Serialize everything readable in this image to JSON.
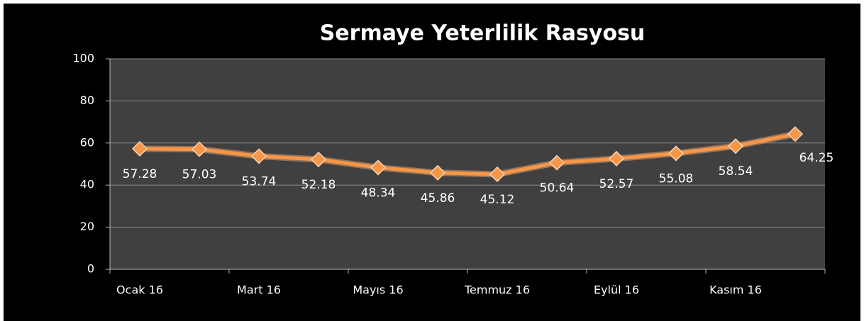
{
  "chart_data": {
    "type": "line",
    "title": "Sermaye Yeterlilik Rasyosu",
    "categories": [
      "Ocak 16",
      null,
      "Mart 16",
      null,
      "Mayıs 16",
      null,
      "Temmuz 16",
      null,
      "Eylül 16",
      null,
      "Kasım 16",
      null
    ],
    "values": [
      57.28,
      57.03,
      53.74,
      52.18,
      48.34,
      45.86,
      45.12,
      50.64,
      52.57,
      55.08,
      58.54,
      64.25
    ],
    "color": "#f79646",
    "ylim": [
      0,
      100
    ],
    "yticks": [
      0,
      20,
      40,
      60,
      80,
      100
    ],
    "grid": true
  }
}
